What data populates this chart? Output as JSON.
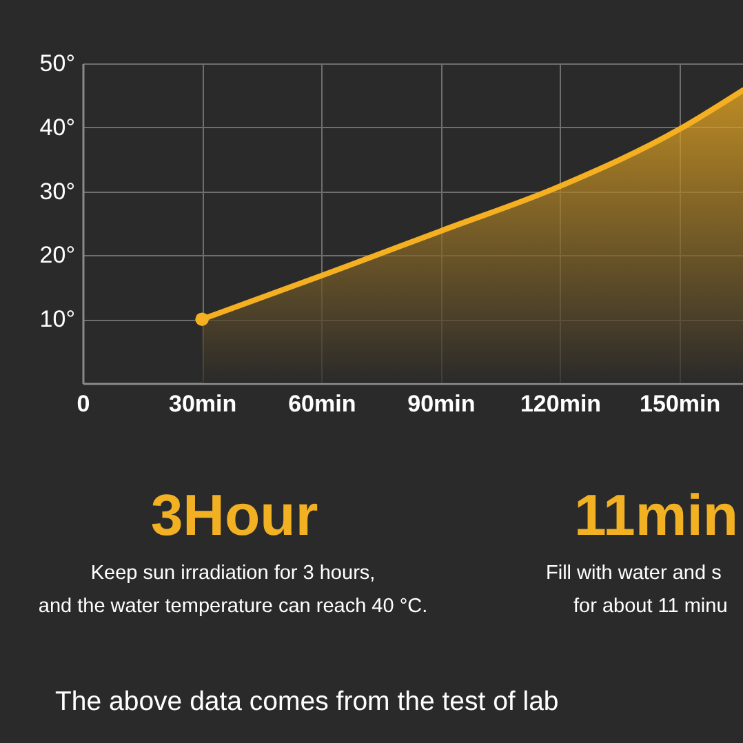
{
  "chart_data": {
    "type": "area",
    "x": [
      30,
      60,
      90,
      120,
      150,
      166
    ],
    "series": [
      {
        "color": "#f5b022",
        "values": [
          10,
          16.8,
          23.8,
          30.8,
          39.7,
          45.8
        ]
      },
      {
        "type": "scatter",
        "color": "#f5b022",
        "x": [
          30
        ],
        "values": [
          10
        ]
      }
    ],
    "xlim": [
      0,
      166
    ],
    "ylim": [
      0,
      50
    ],
    "xticks": [
      {
        "value": 0,
        "label": "0"
      },
      {
        "value": 30,
        "label": "30min"
      },
      {
        "value": 60,
        "label": "60min"
      },
      {
        "value": 90,
        "label": "90min"
      },
      {
        "value": 120,
        "label": "120min"
      },
      {
        "value": 150,
        "label": "150min"
      }
    ],
    "yticks": [
      {
        "value": 10,
        "label": "10°"
      },
      {
        "value": 20,
        "label": "20°"
      },
      {
        "value": 30,
        "label": "30°"
      },
      {
        "value": 40,
        "label": "40°"
      },
      {
        "value": 50,
        "label": "50°"
      }
    ],
    "grid": true,
    "annotations": [
      "3Hour",
      "11min",
      "Keep sun irradiation for 3 hours,",
      "Fill with water and s",
      "and the water temperature can reach 40 °C.",
      "for about 11 minu",
      "The above data comes from the test of lab"
    ]
  }
}
